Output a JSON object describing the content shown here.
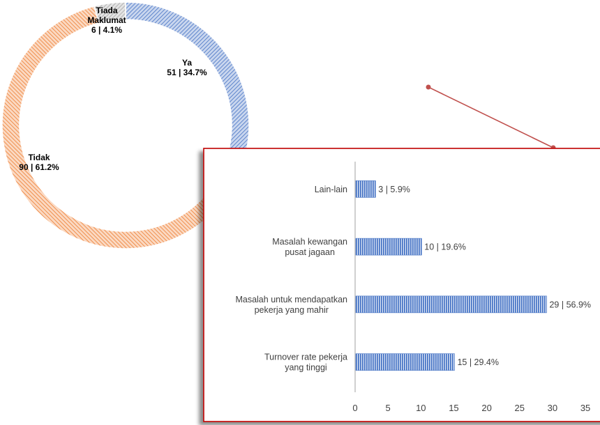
{
  "chart_data": [
    {
      "type": "donut",
      "slices": [
        {
          "label_lines": [
            "Ya"
          ],
          "value": 51,
          "pct": "34.7%",
          "value_label": "51 | 34.7%",
          "color": "#4472c4"
        },
        {
          "label_lines": [
            "Tidak"
          ],
          "value": 90,
          "pct": "61.2%",
          "value_label": "90 | 61.2%",
          "color": "#ed7d31"
        },
        {
          "label_lines": [
            "Tiada",
            "Maklumat"
          ],
          "value": 6,
          "pct": "4.1%",
          "value_label": "6 | 4.1%",
          "color": "#a5a5a5"
        }
      ]
    },
    {
      "type": "bar",
      "orientation": "horizontal",
      "categories": [
        [
          "Lain-lain"
        ],
        [
          "Masalah kewangan",
          "pusat jagaan"
        ],
        [
          "Masalah untuk mendapatkan",
          "pekerja yang mahir"
        ],
        [
          "Turnover rate pekerja",
          "yang tinggi"
        ]
      ],
      "values": [
        3,
        10,
        29,
        15
      ],
      "value_labels": [
        "3 | 5.9%",
        "10 | 19.6%",
        "29 | 56.9%",
        "15 | 29.4%"
      ],
      "xlim": [
        0,
        35
      ],
      "xticks": [
        "0",
        "5",
        "10",
        "15",
        "20",
        "25",
        "30",
        "35"
      ],
      "color": "#4472c4",
      "frame_color": "#c00000"
    }
  ]
}
